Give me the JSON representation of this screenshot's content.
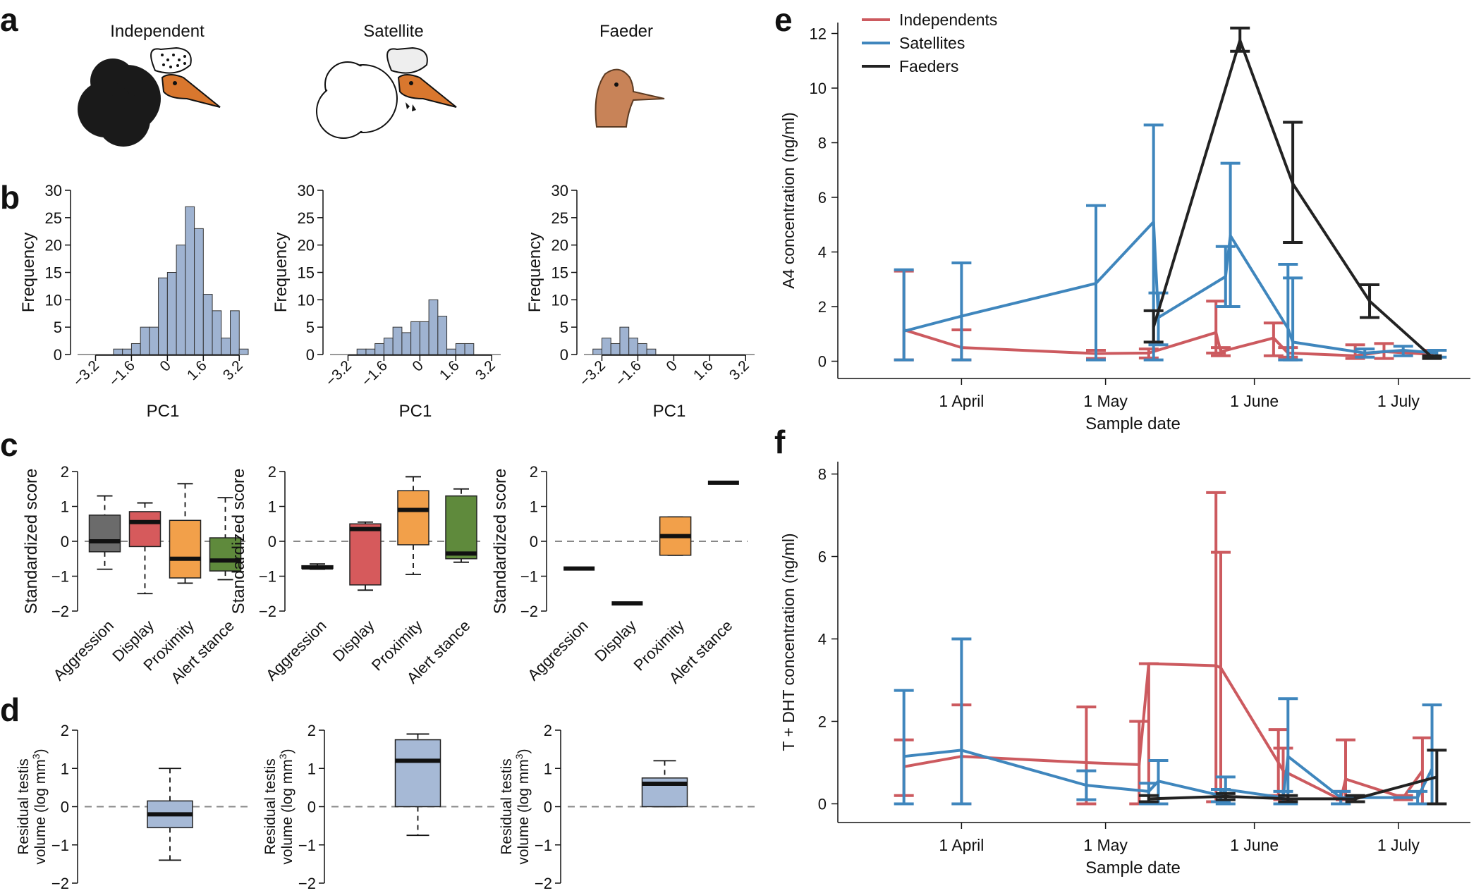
{
  "colors": {
    "independent": "#cc5a5f",
    "satellite": "#3f86bd",
    "faeder": "#222222",
    "hist_fill": "#9fb3d1",
    "box_gray": "#6b6b6b",
    "box_red": "#d65a5c",
    "box_orange": "#f2a04a",
    "box_green": "#5f8a3c",
    "box_blue": "#a6b9d6"
  },
  "panel_letters": {
    "a": "a",
    "b": "b",
    "c": "c",
    "d": "d",
    "e": "e",
    "f": "f"
  },
  "morphs": {
    "titles": [
      "Independent",
      "Satellite",
      "Faeder"
    ]
  },
  "chart_data": [
    {
      "panel": "b",
      "type": "bar",
      "morph": "Independent",
      "title": "",
      "xlabel": "PC1",
      "ylabel": "Frequency",
      "xlim": [
        -4.0,
        3.6
      ],
      "ylim": [
        0,
        30
      ],
      "yticks": [
        0,
        5,
        10,
        15,
        20,
        25,
        30
      ],
      "xticks": [
        "-3.2",
        "-1.6",
        "0",
        "1.6",
        "3.2"
      ],
      "bin_width": 0.4,
      "bins": [
        -2.4,
        -2.0,
        -1.6,
        -1.2,
        -0.8,
        -0.4,
        0.0,
        0.4,
        0.8,
        1.2,
        1.6,
        2.0,
        2.4,
        2.8,
        3.2
      ],
      "values": [
        1,
        1,
        2,
        5,
        5,
        14,
        15,
        20,
        27,
        23,
        11,
        8,
        3,
        8,
        1
      ]
    },
    {
      "panel": "b",
      "type": "bar",
      "morph": "Satellite",
      "title": "",
      "xlabel": "PC1",
      "ylabel": "Frequency",
      "xlim": [
        -4.0,
        3.6
      ],
      "ylim": [
        0,
        30
      ],
      "yticks": [
        0,
        5,
        10,
        15,
        20,
        25,
        30
      ],
      "xticks": [
        "-3.2",
        "-1.6",
        "0",
        "1.6",
        "3.2"
      ],
      "bin_width": 0.4,
      "bins": [
        -3.2,
        -2.8,
        -2.4,
        -2.0,
        -1.6,
        -1.2,
        -0.8,
        -0.4,
        0.0,
        0.4,
        0.8,
        1.2,
        1.6,
        2.0
      ],
      "values": [
        0,
        1,
        1,
        2,
        3,
        5,
        4,
        6,
        6,
        10,
        7,
        1,
        2,
        2
      ]
    },
    {
      "panel": "b",
      "type": "bar",
      "morph": "Faeder",
      "title": "",
      "xlabel": "PC1",
      "ylabel": "Frequency",
      "xlim": [
        -4.0,
        3.6
      ],
      "ylim": [
        0,
        30
      ],
      "yticks": [
        0,
        5,
        10,
        15,
        20,
        25,
        30
      ],
      "xticks": [
        "-3.2",
        "-1.6",
        "0",
        "1.6",
        "3.2"
      ],
      "bin_width": 0.4,
      "bins": [
        -3.6,
        -3.2,
        -2.8,
        -2.4,
        -2.0,
        -1.6,
        -1.2
      ],
      "values": [
        1,
        3,
        2,
        5,
        3,
        2,
        1
      ]
    },
    {
      "panel": "c",
      "type": "box",
      "morph": "Independent",
      "ylabel": "Standardized score",
      "ylim": [
        -2,
        2
      ],
      "yticks": [
        -2,
        -1,
        0,
        1,
        2
      ],
      "categories": [
        "Aggression",
        "Display",
        "Proximity",
        "Alert stance"
      ],
      "boxes": [
        {
          "whislo": -0.8,
          "q1": -0.3,
          "med": 0.0,
          "q3": 0.75,
          "whishi": 1.3,
          "color": "box_gray"
        },
        {
          "whislo": -1.5,
          "q1": -0.15,
          "med": 0.55,
          "q3": 0.85,
          "whishi": 1.1,
          "color": "box_red"
        },
        {
          "whislo": -1.2,
          "q1": -1.05,
          "med": -0.5,
          "q3": 0.6,
          "whishi": 1.65,
          "color": "box_orange"
        },
        {
          "whislo": -1.1,
          "q1": -0.85,
          "med": -0.55,
          "q3": 0.1,
          "whishi": 1.25,
          "color": "box_green"
        }
      ]
    },
    {
      "panel": "c",
      "type": "box",
      "morph": "Satellite",
      "ylabel": "Standardized score",
      "ylim": [
        -2,
        2
      ],
      "yticks": [
        -2,
        -1,
        0,
        1,
        2
      ],
      "categories": [
        "Aggression",
        "Display",
        "Proximity",
        "Alert stance"
      ],
      "boxes": [
        {
          "whislo": -0.8,
          "q1": -0.78,
          "med": -0.75,
          "q3": -0.7,
          "whishi": -0.65,
          "color": "box_gray"
        },
        {
          "whislo": -1.4,
          "q1": -1.25,
          "med": 0.35,
          "q3": 0.5,
          "whishi": 0.55,
          "color": "box_red"
        },
        {
          "whislo": -0.95,
          "q1": -0.1,
          "med": 0.9,
          "q3": 1.45,
          "whishi": 1.85,
          "color": "box_orange"
        },
        {
          "whislo": -0.6,
          "q1": -0.5,
          "med": -0.35,
          "q3": 1.3,
          "whishi": 1.5,
          "color": "box_green"
        }
      ]
    },
    {
      "panel": "c",
      "type": "box",
      "morph": "Faeder",
      "ylabel": "Standardized score",
      "ylim": [
        -2,
        2
      ],
      "yticks": [
        -2,
        -1,
        0,
        1,
        2
      ],
      "categories": [
        "Aggression",
        "Display",
        "Proximity",
        "Alert stance"
      ],
      "boxes": [
        {
          "whislo": -0.78,
          "q1": -0.78,
          "med": -0.78,
          "q3": -0.78,
          "whishi": -0.78,
          "color": "box_gray"
        },
        {
          "whislo": -1.78,
          "q1": -1.78,
          "med": -1.78,
          "q3": -1.78,
          "whishi": -1.78,
          "color": "box_red"
        },
        {
          "whislo": -0.4,
          "q1": -0.4,
          "med": 0.15,
          "q3": 0.7,
          "whishi": 0.7,
          "color": "box_orange"
        },
        {
          "whislo": 1.68,
          "q1": 1.68,
          "med": 1.68,
          "q3": 1.68,
          "whishi": 1.68,
          "color": "box_green"
        }
      ]
    },
    {
      "panel": "d",
      "type": "box",
      "morph": "Independent",
      "ylabel": "Residual testis",
      "ylabel2": "volume (log mm",
      "ylabel_sup": "3",
      "ylabel_end": ")",
      "ylim": [
        -2,
        2
      ],
      "yticks": [
        -2,
        -1,
        0,
        1,
        2
      ],
      "boxes": [
        {
          "whislo": -1.4,
          "q1": -0.55,
          "med": -0.2,
          "q3": 0.15,
          "whishi": 1.0,
          "color": "box_blue"
        }
      ]
    },
    {
      "panel": "d",
      "type": "box",
      "morph": "Satellite",
      "ylabel": "Residual testis",
      "ylabel2": "volume (log mm",
      "ylabel_sup": "3",
      "ylabel_end": ")",
      "ylim": [
        -2,
        2
      ],
      "yticks": [
        -2,
        -1,
        0,
        1,
        2
      ],
      "boxes": [
        {
          "whislo": -0.75,
          "q1": 0.0,
          "med": 1.2,
          "q3": 1.75,
          "whishi": 1.9,
          "color": "box_blue"
        }
      ]
    },
    {
      "panel": "d",
      "type": "box",
      "morph": "Faeder",
      "ylabel": "Residual testis",
      "ylabel2": "volume (log mm",
      "ylabel_sup": "3",
      "ylabel_end": ")",
      "ylim": [
        -2,
        2
      ],
      "yticks": [
        -2,
        -1,
        0,
        1,
        2
      ],
      "boxes": [
        {
          "whislo": 0.0,
          "q1": 0.0,
          "med": 0.6,
          "q3": 0.75,
          "whishi": 1.2,
          "color": "box_blue"
        }
      ]
    },
    {
      "panel": "e",
      "type": "line",
      "xlabel": "Sample date",
      "ylabel": "A4 concentration (ng/ml)",
      "xunit": "day of year",
      "xlim": [
        67,
        197
      ],
      "ylim": [
        -0.4,
        12.4
      ],
      "yticks": [
        0,
        2,
        4,
        6,
        8,
        10,
        12
      ],
      "xticks": [
        {
          "label": "1 April",
          "x": 91
        },
        {
          "label": "1 May",
          "x": 121
        },
        {
          "label": "1 June",
          "x": 152
        },
        {
          "label": "1 July",
          "x": 182
        }
      ],
      "legend": [
        "Independents",
        "Satellites",
        "Faeders"
      ],
      "series": [
        {
          "name": "Independents",
          "color": "independent",
          "points": [
            {
              "x": 79,
              "y": 1.15,
              "lo": 0.05,
              "hi": 3.3
            },
            {
              "x": 91,
              "y": 0.5,
              "lo": 0.05,
              "hi": 1.15
            },
            {
              "x": 119,
              "y": 0.28,
              "lo": 0.1,
              "hi": 0.4
            },
            {
              "x": 130,
              "y": 0.3,
              "lo": 0.12,
              "hi": 0.45
            },
            {
              "x": 144,
              "y": 1.05,
              "lo": 0.3,
              "hi": 2.2
            },
            {
              "x": 145,
              "y": 0.35,
              "lo": 0.2,
              "hi": 0.5
            },
            {
              "x": 156,
              "y": 0.85,
              "lo": 0.2,
              "hi": 1.4
            },
            {
              "x": 159,
              "y": 0.3,
              "lo": 0.15,
              "hi": 0.5
            },
            {
              "x": 173,
              "y": 0.2,
              "lo": 0.1,
              "hi": 0.6
            },
            {
              "x": 179,
              "y": 0.35,
              "lo": 0.1,
              "hi": 0.65
            },
            {
              "x": 189,
              "y": 0.25,
              "lo": 0.15,
              "hi": 0.4
            }
          ]
        },
        {
          "name": "Satellites",
          "color": "satellite",
          "points": [
            {
              "x": 79,
              "y": 1.1,
              "lo": 0.05,
              "hi": 3.35
            },
            {
              "x": 91,
              "y": 1.65,
              "lo": 0.05,
              "hi": 3.6
            },
            {
              "x": 119,
              "y": 2.85,
              "lo": 0.05,
              "hi": 5.7
            },
            {
              "x": 131,
              "y": 5.1,
              "lo": 0.05,
              "hi": 8.65
            },
            {
              "x": 132,
              "y": 1.6,
              "lo": 0.6,
              "hi": 2.5
            },
            {
              "x": 146,
              "y": 3.1,
              "lo": 2.0,
              "hi": 4.2
            },
            {
              "x": 147,
              "y": 4.6,
              "lo": 2.0,
              "hi": 7.25
            },
            {
              "x": 159,
              "y": 1.2,
              "lo": 0.05,
              "hi": 3.55
            },
            {
              "x": 160,
              "y": 0.7,
              "lo": 0.05,
              "hi": 3.05
            },
            {
              "x": 175,
              "y": 0.3,
              "lo": 0.15,
              "hi": 0.45
            },
            {
              "x": 183,
              "y": 0.4,
              "lo": 0.2,
              "hi": 0.55
            },
            {
              "x": 190,
              "y": 0.3,
              "lo": 0.15,
              "hi": 0.4
            }
          ]
        },
        {
          "name": "Faeders",
          "color": "faeder",
          "points": [
            {
              "x": 131,
              "y": 1.25,
              "lo": 0.7,
              "hi": 1.85
            },
            {
              "x": 149,
              "y": 11.75,
              "lo": 11.35,
              "hi": 12.2
            },
            {
              "x": 160,
              "y": 6.5,
              "lo": 4.35,
              "hi": 8.75
            },
            {
              "x": 176,
              "y": 2.2,
              "lo": 1.6,
              "hi": 2.8
            },
            {
              "x": 189,
              "y": 0.15,
              "lo": 0.1,
              "hi": 0.2
            }
          ]
        }
      ]
    },
    {
      "panel": "f",
      "type": "line",
      "xlabel": "Sample date",
      "ylabel": "T + DHT concentration (ng/ml)",
      "xunit": "day of year",
      "xlim": [
        67,
        197
      ],
      "ylim": [
        -0.3,
        8.3
      ],
      "yticks": [
        0,
        2,
        4,
        6,
        8
      ],
      "xticks": [
        {
          "label": "1 April",
          "x": 91
        },
        {
          "label": "1 May",
          "x": 121
        },
        {
          "label": "1 June",
          "x": 152
        },
        {
          "label": "1 July",
          "x": 182
        }
      ],
      "series": [
        {
          "name": "Independents",
          "color": "independent",
          "points": [
            {
              "x": 79,
              "y": 0.9,
              "lo": 0.2,
              "hi": 1.55
            },
            {
              "x": 91,
              "y": 1.15,
              "lo": 0.0,
              "hi": 2.4
            },
            {
              "x": 117,
              "y": 1.0,
              "lo": 0.0,
              "hi": 2.35
            },
            {
              "x": 128,
              "y": 0.95,
              "lo": 0.0,
              "hi": 2.0
            },
            {
              "x": 130,
              "y": 3.4,
              "lo": 0.05,
              "hi": 3.4
            },
            {
              "x": 144,
              "y": 3.35,
              "lo": 0.05,
              "hi": 7.55
            },
            {
              "x": 145,
              "y": 3.3,
              "lo": 0.05,
              "hi": 6.1
            },
            {
              "x": 157,
              "y": 1.0,
              "lo": 0.2,
              "hi": 1.8
            },
            {
              "x": 158,
              "y": 0.8,
              "lo": 0.1,
              "hi": 1.35
            },
            {
              "x": 170,
              "y": 0.1,
              "lo": 0.0,
              "hi": 0.3
            },
            {
              "x": 171,
              "y": 0.6,
              "lo": 0.1,
              "hi": 1.55
            },
            {
              "x": 183,
              "y": 0.15,
              "lo": 0.1,
              "hi": 0.2
            },
            {
              "x": 187,
              "y": 0.8,
              "lo": 0.0,
              "hi": 1.6
            }
          ]
        },
        {
          "name": "Satellites",
          "color": "satellite",
          "points": [
            {
              "x": 79,
              "y": 1.15,
              "lo": 0.0,
              "hi": 2.75
            },
            {
              "x": 91,
              "y": 1.3,
              "lo": 0.0,
              "hi": 4.0
            },
            {
              "x": 117,
              "y": 0.45,
              "lo": 0.1,
              "hi": 0.8
            },
            {
              "x": 130,
              "y": 0.3,
              "lo": 0.0,
              "hi": 0.5
            },
            {
              "x": 132,
              "y": 0.55,
              "lo": 0.0,
              "hi": 1.05
            },
            {
              "x": 145,
              "y": 0.2,
              "lo": 0.05,
              "hi": 0.35
            },
            {
              "x": 146,
              "y": 0.35,
              "lo": 0.0,
              "hi": 0.65
            },
            {
              "x": 158,
              "y": 0.15,
              "lo": 0.0,
              "hi": 0.3
            },
            {
              "x": 159,
              "y": 1.15,
              "lo": 0.0,
              "hi": 2.55
            },
            {
              "x": 170,
              "y": 0.15,
              "lo": 0.0,
              "hi": 0.3
            },
            {
              "x": 186,
              "y": 0.15,
              "lo": 0.0,
              "hi": 0.3
            },
            {
              "x": 189,
              "y": 0.85,
              "lo": 0.0,
              "hi": 2.4
            }
          ]
        },
        {
          "name": "Faeders",
          "color": "faeder",
          "points": [
            {
              "x": 130,
              "y": 0.12,
              "lo": 0.05,
              "hi": 0.2
            },
            {
              "x": 146,
              "y": 0.18,
              "lo": 0.1,
              "hi": 0.25
            },
            {
              "x": 159,
              "y": 0.12,
              "lo": 0.05,
              "hi": 0.2
            },
            {
              "x": 173,
              "y": 0.12,
              "lo": 0.05,
              "hi": 0.2
            },
            {
              "x": 190,
              "y": 0.65,
              "lo": 0.0,
              "hi": 1.3
            }
          ]
        }
      ]
    }
  ]
}
